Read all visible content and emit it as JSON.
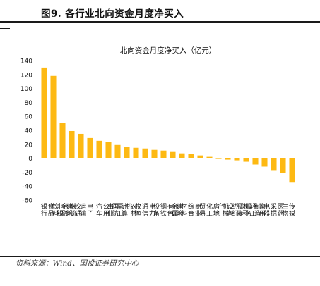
{
  "figure": {
    "title": "图9. 各行业北向资金月度净买入",
    "source": "资料来源：Wind、国投证券研究中心"
  },
  "chart_data": {
    "type": "bar",
    "title": "北向资金月度净买入（亿元）",
    "xlabel": "",
    "ylabel": "",
    "ylim": [
      -60,
      140
    ],
    "yticks": [
      -60,
      -40,
      -20,
      0,
      20,
      40,
      60,
      80,
      100,
      120,
      140
    ],
    "grid": false,
    "legend": "none",
    "bar_color": "#FDB913",
    "categories": [
      "银行",
      "食品饮料",
      "非银金融",
      "建筑装饰",
      "交通运输",
      "电子",
      "汽车",
      "公用事业",
      "国防军工",
      "计算机",
      "农林牧渔",
      "通信",
      "电力设备",
      "钢铁",
      "有色金属",
      "建筑材料",
      "综合",
      "商业贸易",
      "化工",
      "房地产",
      "机械设备",
      "纺织服装",
      "休闲服务",
      "轻工制造",
      "家用电器",
      "采掘",
      "医药生物",
      "传媒"
    ],
    "values": [
      130,
      118,
      51,
      39,
      35,
      29,
      25,
      23,
      19,
      16,
      15,
      14,
      12,
      11,
      9,
      7,
      6,
      4,
      2,
      -1,
      -2,
      -3,
      -5,
      -9,
      -12,
      -18,
      -21,
      -35
    ]
  }
}
